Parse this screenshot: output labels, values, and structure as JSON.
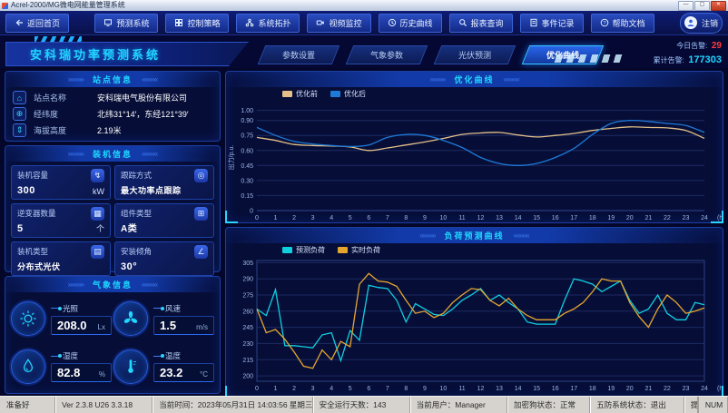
{
  "window": {
    "title": "Acrel-2000/MG微电网能量管理系统"
  },
  "ui": {
    "arrows_left": "»»»»»",
    "arrows_right": "«««««"
  },
  "nav": {
    "back": "返回首页",
    "items": [
      "预测系统",
      "控制策略",
      "系统拓扑",
      "视频监控",
      "历史曲线",
      "报表查询",
      "事件记录",
      "帮助文档"
    ],
    "logout": "注销"
  },
  "header": {
    "title": "安科瑞功率预测系统",
    "tabs": [
      {
        "label": "参数设置"
      },
      {
        "label": "气象参数"
      },
      {
        "label": "光伏预测"
      },
      {
        "label": "优化曲线"
      }
    ],
    "alarms": {
      "today_label": "今日告警:",
      "today_value": "29",
      "total_label": "累计告警:",
      "total_value": "177303"
    }
  },
  "site_info": {
    "title": "站点信息",
    "rows": [
      {
        "icon": "building-icon",
        "glyph": "⌂",
        "label": "站点名称",
        "value": "安科瑞电气股份有限公司"
      },
      {
        "icon": "location-icon",
        "glyph": "⊕",
        "label": "经纬度",
        "value": "北纬31°14′，东经121°39′"
      },
      {
        "icon": "altitude-icon",
        "glyph": "⇕",
        "label": "海拔高度",
        "value": "2.19米"
      }
    ]
  },
  "install_info": {
    "title": "装机信息",
    "cards": [
      {
        "icon": "capacity-icon",
        "glyph": "↯",
        "label": "装机容量",
        "value": "300",
        "unit": "kW"
      },
      {
        "icon": "tracking-icon",
        "glyph": "◎",
        "label": "跟踪方式",
        "value": "最大功率点跟踪",
        "unit": ""
      },
      {
        "icon": "inverter-icon",
        "glyph": "▦",
        "label": "逆变器数量",
        "value": "5",
        "unit": "个"
      },
      {
        "icon": "module-icon",
        "glyph": "⊞",
        "label": "组件类型",
        "value": "A类",
        "unit": ""
      },
      {
        "icon": "type-icon",
        "glyph": "▤",
        "label": "装机类型",
        "value": "分布式光伏",
        "unit": ""
      },
      {
        "icon": "angle-icon",
        "glyph": "∠",
        "label": "安装倾角",
        "value": "30°",
        "unit": ""
      }
    ]
  },
  "weather_info": {
    "title": "气象信息",
    "metrics": [
      {
        "icon": "sun-icon",
        "label": "光照",
        "value": "208.0",
        "unit": "Lx"
      },
      {
        "icon": "fan-icon",
        "label": "风速",
        "value": "1.5",
        "unit": "m/s"
      },
      {
        "icon": "humidity-icon",
        "label": "湿度",
        "value": "82.8",
        "unit": "%"
      },
      {
        "icon": "temperature-icon",
        "label": "温度",
        "value": "23.2",
        "unit": "°C"
      }
    ]
  },
  "chart_data": [
    {
      "type": "line",
      "title": "优化曲线",
      "ylabel": "出力/p.u.",
      "xunit": "(h)",
      "smooth": true,
      "box": false,
      "grid": true,
      "legend_position": "top-left",
      "x_start": 0,
      "x_step": 1,
      "xticks_max": 24,
      "ylim": [
        0,
        1.06
      ],
      "yticks": [
        "0",
        "0.15",
        "0.30",
        "0.45",
        "0.60",
        "0.75",
        "0.90",
        "1.00"
      ],
      "series": [
        {
          "name": "优化前",
          "color": "#e4c088",
          "values": [
            0.73,
            0.7,
            0.66,
            0.65,
            0.645,
            0.635,
            0.6,
            0.625,
            0.655,
            0.685,
            0.72,
            0.76,
            0.775,
            0.78,
            0.755,
            0.735,
            0.75,
            0.77,
            0.8,
            0.82,
            0.835,
            0.83,
            0.825,
            0.8,
            0.72
          ]
        },
        {
          "name": "优化后",
          "color": "#1e7ad8",
          "values": [
            0.83,
            0.75,
            0.69,
            0.665,
            0.65,
            0.64,
            0.655,
            0.73,
            0.76,
            0.75,
            0.7,
            0.63,
            0.53,
            0.47,
            0.45,
            0.47,
            0.53,
            0.62,
            0.76,
            0.87,
            0.9,
            0.89,
            0.87,
            0.85,
            0.78
          ]
        }
      ]
    },
    {
      "type": "line",
      "title": "负荷预测曲线",
      "ylabel": "",
      "xunit": "(h)",
      "smooth": false,
      "box": true,
      "grid": true,
      "legend_position": "top-left",
      "x_start": 0,
      "x_step": 0.5,
      "xticks_max": 24,
      "ylim": [
        195,
        307
      ],
      "yticks": [
        "200",
        "215",
        "230",
        "245",
        "260",
        "275",
        "290",
        "305"
      ],
      "series": [
        {
          "name": "预测负荷",
          "color": "#10cfe0",
          "values": [
            262,
            256,
            280,
            228,
            228,
            227,
            226,
            238,
            240,
            214,
            242,
            233,
            284,
            282,
            281,
            270,
            250,
            267,
            262,
            257,
            256,
            262,
            270,
            275,
            281,
            270,
            275,
            268,
            262,
            250,
            248,
            248,
            248,
            270,
            290,
            288,
            285,
            278,
            283,
            288,
            270,
            258,
            262,
            275,
            258,
            252,
            252,
            268,
            266
          ]
        },
        {
          "name": "实时负荷",
          "color": "#e6a62e",
          "values": [
            262,
            240,
            243,
            234,
            222,
            209,
            207,
            224,
            215,
            232,
            227,
            285,
            295,
            288,
            287,
            283,
            270,
            258,
            260,
            254,
            258,
            268,
            275,
            281,
            280,
            270,
            265,
            272,
            262,
            256,
            252,
            252,
            252,
            258,
            262,
            268,
            278,
            290,
            288,
            288,
            268,
            255,
            245,
            262,
            275,
            268,
            258,
            260,
            263
          ]
        }
      ]
    }
  ],
  "statusbar": {
    "items": [
      "准备好",
      "Ver 2.3.8 U26 3.3.18",
      "当前时间：2023年05月31日 14:03:56 星期三",
      "安全运行天数：143",
      "当前用户：Manager",
      "加密狗状态：正常",
      "五防系统状态：退出",
      "提示：按Alt+D组合键打开功能面板",
      "NUM"
    ]
  }
}
